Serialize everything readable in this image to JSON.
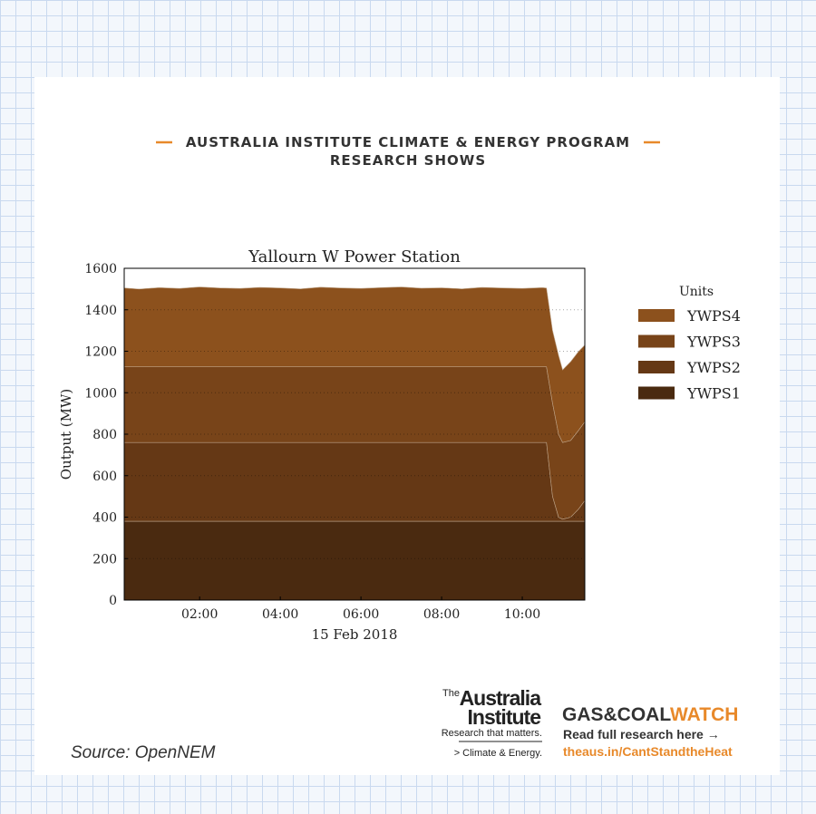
{
  "header": {
    "line1": "AUSTRALIA INSTITUTE CLIMATE & ENERGY PROGRAM",
    "line2": "RESEARCH SHOWS"
  },
  "chart_data": {
    "type": "stacked_area",
    "title": "Yallourn W Power Station",
    "x_label": "15 Feb 2018",
    "y_label": "Output (MW)",
    "x": [
      0.13,
      0.5,
      1,
      1.5,
      2,
      2.5,
      3,
      3.5,
      4,
      4.5,
      5,
      5.5,
      6,
      6.5,
      7,
      7.5,
      8,
      8.5,
      9,
      9.5,
      10,
      10.5,
      10.6,
      10.75,
      10.9,
      11,
      11.2,
      11.4,
      11.55
    ],
    "xlim": [
      0.13,
      11.55
    ],
    "xticks": [
      {
        "value": 2,
        "label": "02:00"
      },
      {
        "value": 4,
        "label": "04:00"
      },
      {
        "value": 6,
        "label": "06:00"
      },
      {
        "value": 8,
        "label": "08:00"
      },
      {
        "value": 10,
        "label": "10:00"
      }
    ],
    "ylim": [
      0,
      1600
    ],
    "yticks": [
      0,
      200,
      400,
      600,
      800,
      1000,
      1200,
      1400,
      1600
    ],
    "grid": true,
    "legend_title": "Units",
    "legend_position": "right",
    "series": [
      {
        "name": "YWPS4",
        "color": "#8c511d",
        "values": [
          380,
          375,
          382,
          378,
          385,
          380,
          378,
          383,
          380,
          376,
          384,
          380,
          378,
          382,
          385,
          379,
          381,
          376,
          383,
          380,
          378,
          382,
          380,
          350,
          380,
          350,
          380,
          380,
          370
        ]
      },
      {
        "name": "YWPS3",
        "color": "#784419",
        "values": [
          365,
          365,
          365,
          365,
          365,
          365,
          365,
          365,
          365,
          365,
          365,
          365,
          365,
          365,
          365,
          365,
          365,
          365,
          365,
          365,
          365,
          365,
          365,
          450,
          400,
          370,
          370,
          380,
          380
        ]
      },
      {
        "name": "YWPS2",
        "color": "#653815",
        "values": [
          380,
          380,
          380,
          380,
          380,
          380,
          380,
          380,
          380,
          380,
          380,
          380,
          380,
          380,
          380,
          380,
          380,
          380,
          380,
          380,
          380,
          380,
          380,
          120,
          20,
          10,
          20,
          60,
          100
        ]
      },
      {
        "name": "YWPS1",
        "color": "#4a2a10",
        "values": [
          380,
          380,
          380,
          380,
          380,
          380,
          380,
          380,
          380,
          380,
          380,
          380,
          380,
          380,
          380,
          380,
          380,
          380,
          380,
          380,
          380,
          380,
          380,
          380,
          380,
          380,
          380,
          380,
          380
        ]
      }
    ]
  },
  "source": "Source: OpenNEM",
  "logo": {
    "the": "The",
    "name1": "Australia",
    "name2": "Institute",
    "tagline": "Research that matters.",
    "program": "> Climate & Energy."
  },
  "campaign": {
    "name_dark": "GAS&COAL",
    "name_accent": "WATCH",
    "cta": "Read full research here →",
    "url": "theaus.in/CantStandtheHeat"
  }
}
